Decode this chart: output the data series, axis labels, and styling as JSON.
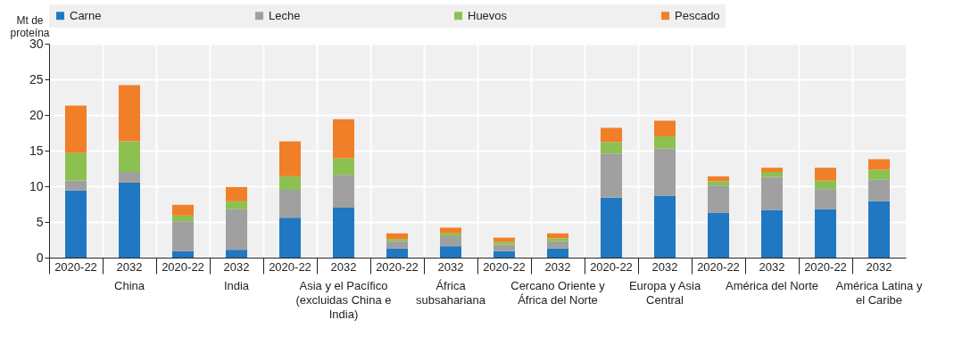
{
  "chart_data": {
    "type": "bar",
    "stacked": true,
    "ylabel": "Mt de proteína",
    "categories": [
      "2020-22",
      "2032",
      "2020-22",
      "2032",
      "2020-22",
      "2032",
      "2020-22",
      "2032",
      "2020-22",
      "2032",
      "2020-22",
      "2032",
      "2020-22",
      "2032",
      "2020-22",
      "2032"
    ],
    "annotations": [
      "China",
      "India",
      "Asia y el Pacífico (excluidas China e India)",
      "África subsahariana",
      "Cercano Oriente y África del Norte",
      "Europa y Asia Central",
      "América del Norte",
      "América Latina y el Caribe"
    ],
    "series": [
      {
        "name": "Carne",
        "color": "#1f78c1",
        "values": [
          9.4,
          10.5,
          0.9,
          1.1,
          5.6,
          7.0,
          1.3,
          1.6,
          0.9,
          1.3,
          8.4,
          8.7,
          6.3,
          6.7,
          6.8,
          7.9
        ]
      },
      {
        "name": "Leche",
        "color": "#a0a0a0",
        "values": [
          1.4,
          1.5,
          4.2,
          5.7,
          3.9,
          4.6,
          1.0,
          1.4,
          0.9,
          1.0,
          6.2,
          6.6,
          3.8,
          4.6,
          2.8,
          3.0
        ]
      },
      {
        "name": "Huevos",
        "color": "#8cc152",
        "values": [
          3.9,
          4.3,
          0.8,
          1.1,
          1.9,
          2.3,
          0.3,
          0.4,
          0.4,
          0.4,
          1.6,
          1.7,
          0.6,
          0.7,
          1.2,
          1.4
        ]
      },
      {
        "name": "Pescado",
        "color": "#f07f28",
        "values": [
          6.6,
          7.9,
          1.5,
          2.0,
          4.9,
          5.5,
          0.8,
          0.8,
          0.6,
          0.7,
          2.0,
          2.2,
          0.7,
          0.6,
          1.8,
          1.5
        ]
      }
    ],
    "ylim": [
      0,
      30
    ],
    "yticks": [
      0,
      5,
      10,
      15,
      20,
      25,
      30
    ],
    "grid": true,
    "legend": "top"
  }
}
